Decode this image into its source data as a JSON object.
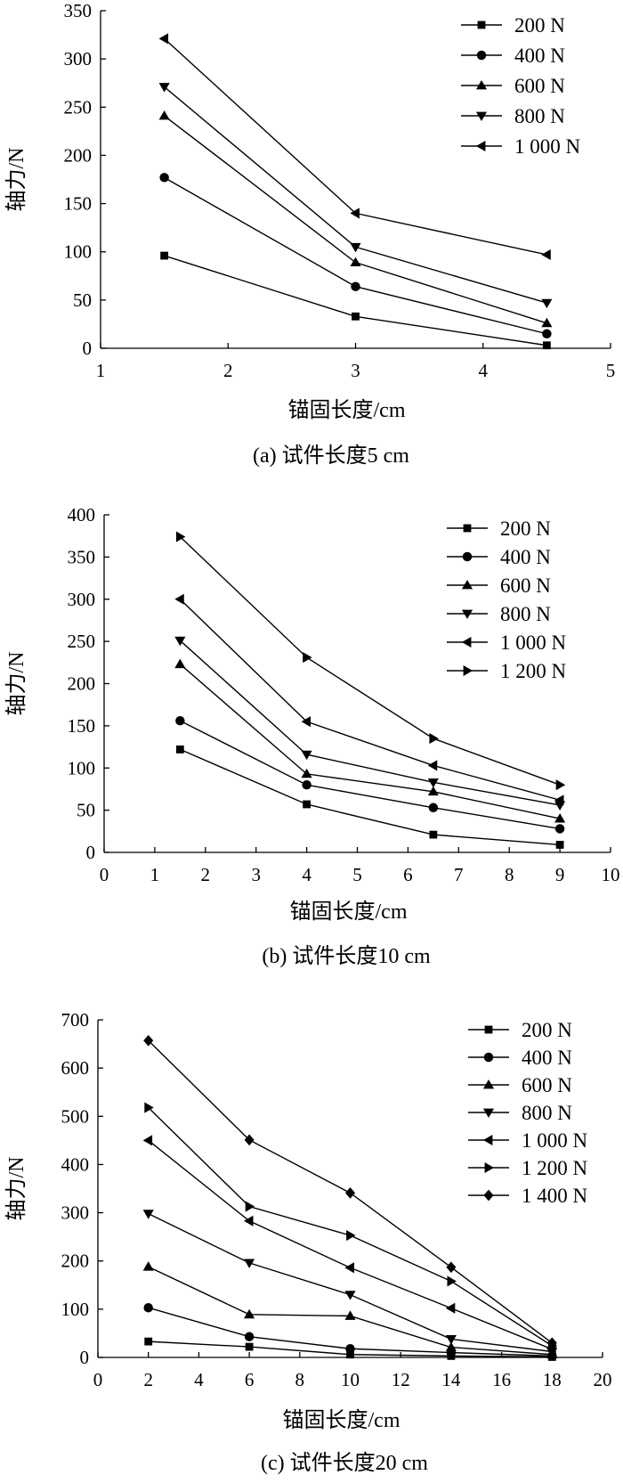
{
  "chart_data": [
    {
      "type": "line",
      "xlabel": "锚固长度/cm",
      "ylabel": "轴力/N",
      "caption": "(a) 试件长度5 cm",
      "xlim": [
        1,
        5
      ],
      "ylim": [
        0,
        350
      ],
      "xticks": [
        1,
        2,
        3,
        4,
        5
      ],
      "yticks": [
        0,
        50,
        100,
        150,
        200,
        250,
        300,
        350
      ],
      "grid": false,
      "legend_position": "top-right",
      "x": [
        1.5,
        3,
        4.5
      ],
      "series": [
        {
          "name": "200 N",
          "marker": "square",
          "values": [
            96,
            33,
            3
          ]
        },
        {
          "name": "400 N",
          "marker": "circle",
          "values": [
            177,
            64,
            15
          ]
        },
        {
          "name": "600 N",
          "marker": "triangle-up",
          "values": [
            241,
            89,
            26
          ]
        },
        {
          "name": "800 N",
          "marker": "triangle-down",
          "values": [
            271,
            105,
            47
          ]
        },
        {
          "name": "1 000 N",
          "marker": "triangle-left",
          "values": [
            321,
            140,
            97
          ]
        }
      ]
    },
    {
      "type": "line",
      "xlabel": "锚固长度/cm",
      "ylabel": "轴力/N",
      "caption": "(b) 试件长度10 cm",
      "xlim": [
        0,
        10
      ],
      "ylim": [
        0,
        400
      ],
      "xticks": [
        0,
        1,
        2,
        3,
        4,
        5,
        6,
        7,
        8,
        9,
        10
      ],
      "yticks": [
        0,
        50,
        100,
        150,
        200,
        250,
        300,
        350,
        400
      ],
      "grid": false,
      "legend_position": "top-right",
      "x": [
        1.5,
        4,
        6.5,
        9
      ],
      "series": [
        {
          "name": "200 N",
          "marker": "square",
          "values": [
            122,
            57,
            21,
            9
          ]
        },
        {
          "name": "400 N",
          "marker": "circle",
          "values": [
            156,
            80,
            53,
            28
          ]
        },
        {
          "name": "600 N",
          "marker": "triangle-up",
          "values": [
            223,
            93,
            72,
            40
          ]
        },
        {
          "name": "800 N",
          "marker": "triangle-down",
          "values": [
            251,
            116,
            83,
            56
          ]
        },
        {
          "name": "1 000 N",
          "marker": "triangle-left",
          "values": [
            300,
            155,
            103,
            62
          ]
        },
        {
          "name": "1 200 N",
          "marker": "triangle-right",
          "values": [
            374,
            231,
            135,
            80
          ]
        }
      ]
    },
    {
      "type": "line",
      "xlabel": "锚固长度/cm",
      "ylabel": "轴力/N",
      "caption": "(c) 试件长度20 cm",
      "xlim": [
        0,
        20
      ],
      "ylim": [
        0,
        700
      ],
      "xticks": [
        0,
        2,
        4,
        6,
        8,
        10,
        12,
        14,
        16,
        18,
        20
      ],
      "yticks": [
        0,
        100,
        200,
        300,
        400,
        500,
        600,
        700
      ],
      "grid": false,
      "legend_position": "top-right",
      "x": [
        2,
        6,
        10,
        14,
        18
      ],
      "series": [
        {
          "name": "200 N",
          "marker": "square",
          "values": [
            33,
            22,
            6,
            3,
            1
          ]
        },
        {
          "name": "400 N",
          "marker": "circle",
          "values": [
            103,
            43,
            18,
            10,
            3
          ]
        },
        {
          "name": "600 N",
          "marker": "triangle-up",
          "values": [
            188,
            89,
            86,
            21,
            6
          ]
        },
        {
          "name": "800 N",
          "marker": "triangle-down",
          "values": [
            298,
            196,
            130,
            38,
            12
          ]
        },
        {
          "name": "1 000 N",
          "marker": "triangle-left",
          "values": [
            450,
            283,
            186,
            102,
            17
          ]
        },
        {
          "name": "1 200 N",
          "marker": "triangle-right",
          "values": [
            518,
            313,
            253,
            158,
            24
          ]
        },
        {
          "name": "1 400 N",
          "marker": "diamond",
          "values": [
            657,
            451,
            341,
            187,
            30
          ]
        }
      ]
    }
  ]
}
